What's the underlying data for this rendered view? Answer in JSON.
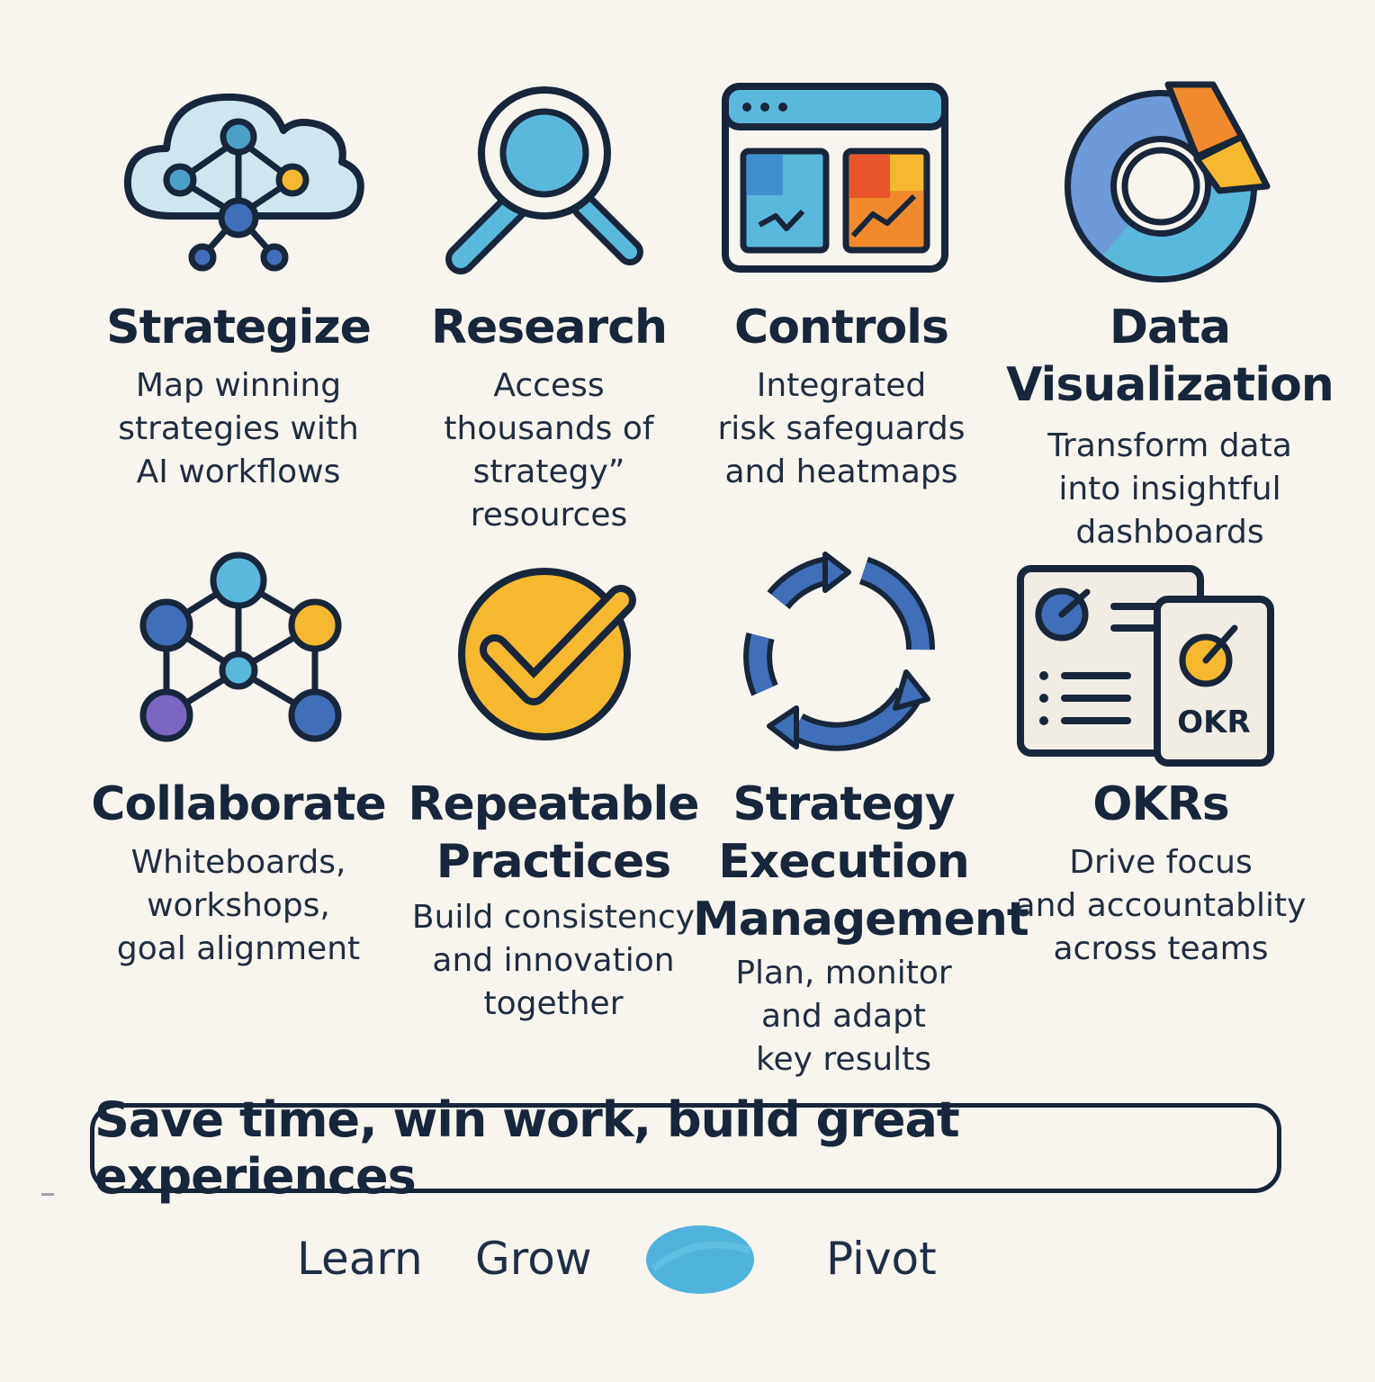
{
  "features": [
    {
      "title": "Strategize",
      "desc": "Map winning\nstrategies with\nAI workflows",
      "icon": "cloud-network-icon"
    },
    {
      "title": "Research",
      "desc": "Access\nthousands of\nstrategy”\nresources",
      "icon": "magnifier-icon"
    },
    {
      "title": "Controls",
      "desc": "Integrated\nrisk safeguards\nand heatmaps",
      "icon": "dashboard-window-icon"
    },
    {
      "title": "Data\nVisualization",
      "desc": "Transform data\ninto insightful\ndashboards",
      "icon": "donut-chart-icon"
    },
    {
      "title": "Collaborate",
      "desc": "Whiteboards,\nworkshops,\ngoal alignment",
      "icon": "network-graph-icon"
    },
    {
      "title": "Repeatable\nPractices",
      "desc": "Build consistency\nand innovation\ntogether",
      "icon": "checkmark-circle-icon"
    },
    {
      "title": "Strategy\nExecution\nManagement",
      "desc": "Plan, monitor\nand adapt\nkey results",
      "icon": "refresh-cycle-icon"
    },
    {
      "title": "OKRs",
      "desc": "Drive focus\nand accountablity\nacross teams",
      "icon": "okr-documents-icon",
      "badge": "OKR"
    }
  ],
  "banner": {
    "text": "Save time, win work, build great experiences"
  },
  "footer": {
    "items": [
      "Learn",
      "Grow",
      "Pivot"
    ],
    "blob_icon": "oval-blob-icon"
  },
  "colors": {
    "background": "#f8f4ee",
    "ink": "#17263a",
    "blue_dark": "#3f6fb8",
    "blue_light": "#5bb8dd",
    "yellow": "#f5b82e",
    "orange": "#f08a2c",
    "red_orange": "#e8552a",
    "purple": "#7b66c2"
  }
}
